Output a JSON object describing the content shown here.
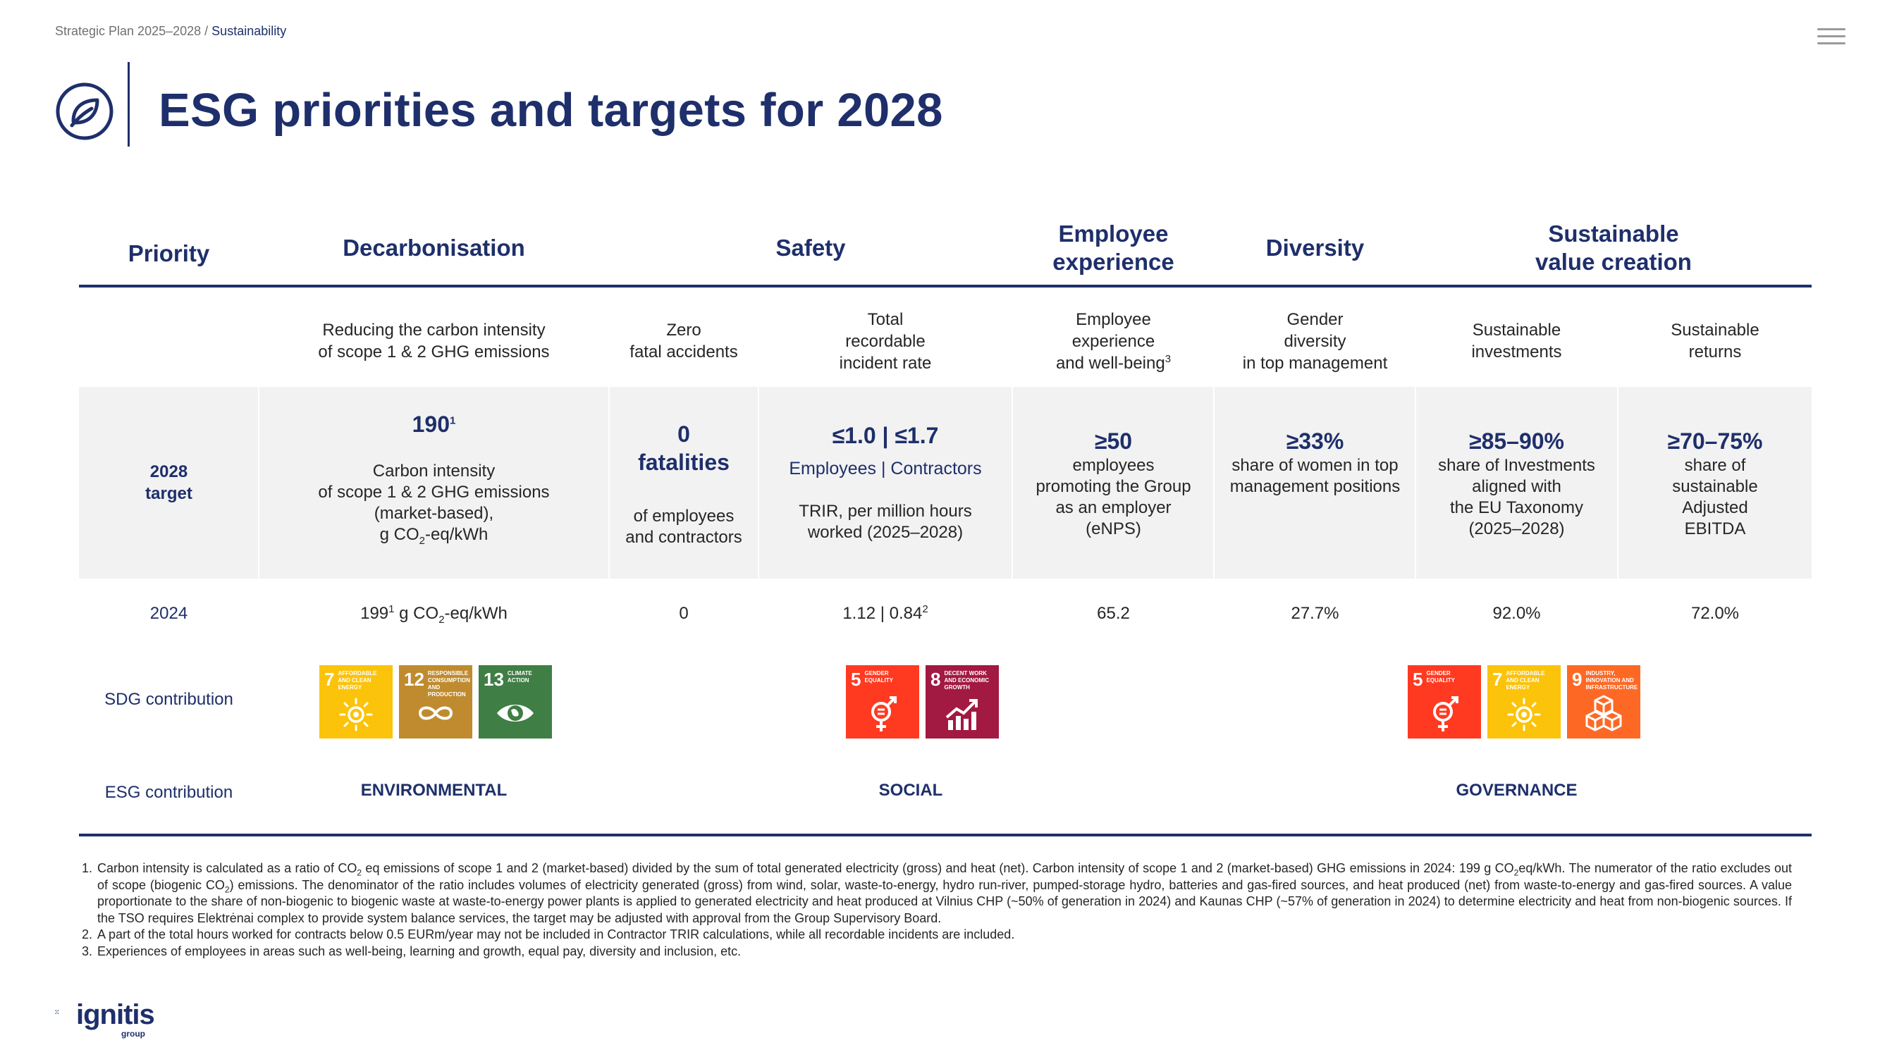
{
  "breadcrumb": {
    "path": "Strategic Plan 2025–2028 / ",
    "current": "Sustainability"
  },
  "title": "ESG priorities and targets for 2028",
  "headers": {
    "priority": "Priority",
    "decarbonisation": "Decarbonisation",
    "safety": "Safety",
    "employee_line1": "Employee",
    "employee_line2": "experience",
    "diversity": "Diversity",
    "sustainable_line1": "Sustainable",
    "sustainable_line2": "value creation"
  },
  "subheaders": {
    "c1_l1": "Reducing the carbon intensity",
    "c1_l2": "of scope 1 & 2 GHG emissions",
    "c2_l1": "Zero",
    "c2_l2": "fatal accidents",
    "c3_l1": "Total",
    "c3_l2": "recordable",
    "c3_l3": "incident rate",
    "c4_l1": "Employee",
    "c4_l2": "experience",
    "c4_l3": "and well-being",
    "c4_sup": "3",
    "c5_l1": "Gender",
    "c5_l2": "diversity",
    "c5_l3": "in top management",
    "c6_l1": "Sustainable",
    "c6_l2": "investments",
    "c7_l1": "Sustainable",
    "c7_l2": "returns"
  },
  "target": {
    "row_label_l1": "2028",
    "row_label_l2": "target",
    "c1_value": "190",
    "c1_sup": "1",
    "c1_l1": "Carbon intensity",
    "c1_l2": "of scope 1 & 2 GHG emissions",
    "c1_l3": "(market-based),",
    "c1_l4a": "g CO",
    "c1_l4sub": "2",
    "c1_l4b": "-eq/kWh",
    "c2_value_l1": "0",
    "c2_value_l2": "fatalities",
    "c2_l1": "of employees",
    "c2_l2": "and contractors",
    "c3_value": "≤1.0 | ≤1.7",
    "c3_sub": "Employees | Contractors",
    "c3_l1": "TRIR, per million hours",
    "c3_l2": "worked (2025–2028)",
    "c4_value": "≥50",
    "c4_l1": "employees",
    "c4_l2": "promoting the Group",
    "c4_l3": "as an employer",
    "c4_l4": "(eNPS)",
    "c5_value": "≥33%",
    "c5_l1": "share of women in top",
    "c5_l2": "management positions",
    "c6_value": "≥85–90%",
    "c6_l1": "share of Investments",
    "c6_l2": "aligned with",
    "c6_l3": "the EU Taxonomy",
    "c6_l4": "(2025–2028)",
    "c7_value": "≥70–75%",
    "c7_l1": "share of",
    "c7_l2": "sustainable",
    "c7_l3": "Adjusted",
    "c7_l4": "EBITDA"
  },
  "actual": {
    "row_label": "2024",
    "c1a": "199",
    "c1sup": "1",
    "c1b": " g CO",
    "c1sub": "2",
    "c1c": "-eq/kWh",
    "c2": "0",
    "c3": "1.12 | 0.84",
    "c3sup": "2",
    "c4": "65.2",
    "c5": "27.7%",
    "c6": "92.0%",
    "c7": "72.0%"
  },
  "sdg": {
    "row_label": "SDG contribution",
    "goals": [
      {
        "num": "7",
        "label": "Affordable and clean energy",
        "color": "#fcc30b",
        "icon": "sun-icon"
      },
      {
        "num": "12",
        "label": "Responsible consumption and production",
        "color": "#bf8b2e",
        "icon": "infinity-icon"
      },
      {
        "num": "13",
        "label": "Climate action",
        "color": "#3f7e44",
        "icon": "eye-globe-icon"
      },
      {
        "num": "5",
        "label": "Gender equality",
        "color": "#ff3a21",
        "icon": "gender-icon"
      },
      {
        "num": "8",
        "label": "Decent work and economic growth",
        "color": "#a21942",
        "icon": "growth-chart-icon"
      },
      {
        "num": "5",
        "label": "Gender equality",
        "color": "#ff3a21",
        "icon": "gender-icon"
      },
      {
        "num": "7",
        "label": "Affordable and clean energy",
        "color": "#fcc30b",
        "icon": "sun-icon"
      },
      {
        "num": "9",
        "label": "Industry, innovation and infrastructure",
        "color": "#fd6925",
        "icon": "cubes-icon"
      }
    ]
  },
  "esg": {
    "row_label": "ESG contribution",
    "environmental": "ENVIRONMENTAL",
    "social": "SOCIAL",
    "governance": "GOVERNANCE"
  },
  "footnotes": {
    "n1": "1.",
    "f1a": "Carbon intensity is calculated as a ratio of CO",
    "f1b": " eq emissions of scope 1 and 2 (market-based) divided by the sum of total generated electricity (gross) and heat (net). Carbon intensity of scope 1 and 2 (market-based) GHG emissions in 2024: 199 g CO",
    "f1c": "eq/kWh. The numerator of the ratio excludes out of scope (biogenic CO",
    "f1d": ") emissions. The denominator of the ratio includes volumes of electricity generated (gross) from wind, solar, waste-to-energy, hydro run-river, pumped-storage hydro, batteries and gas-fired sources, and heat produced (net) from waste-to-energy and gas-fired sources. A value proportionate to the share of non-biogenic to biogenic waste at waste-to-energy power plants is applied to generated electricity and heat produced at Vilnius CHP (~50% of generation in 2024) and Kaunas CHP (~57% of generation in 2024) to determine electricity and heat from non-biogenic sources. If the TSO requires Elektrėnai complex to provide system balance services, the target may be adjusted with approval from the Group Supervisory Board.",
    "sub2": "2",
    "n2": "2.",
    "f2": "A part of the total hours worked for contracts below 0.5 EURm/year may not be included in Contractor TRIR calculations, while all recordable incidents are included.",
    "n3": "3.",
    "f3": "Experiences of employees in areas such as well-being, learning and growth, equal pay, diversity and inclusion, etc."
  },
  "logo": {
    "name": "ignitis",
    "sub": "group"
  },
  "colors": {
    "navy": "#1e2f6b",
    "band": "#f2f2f2"
  }
}
